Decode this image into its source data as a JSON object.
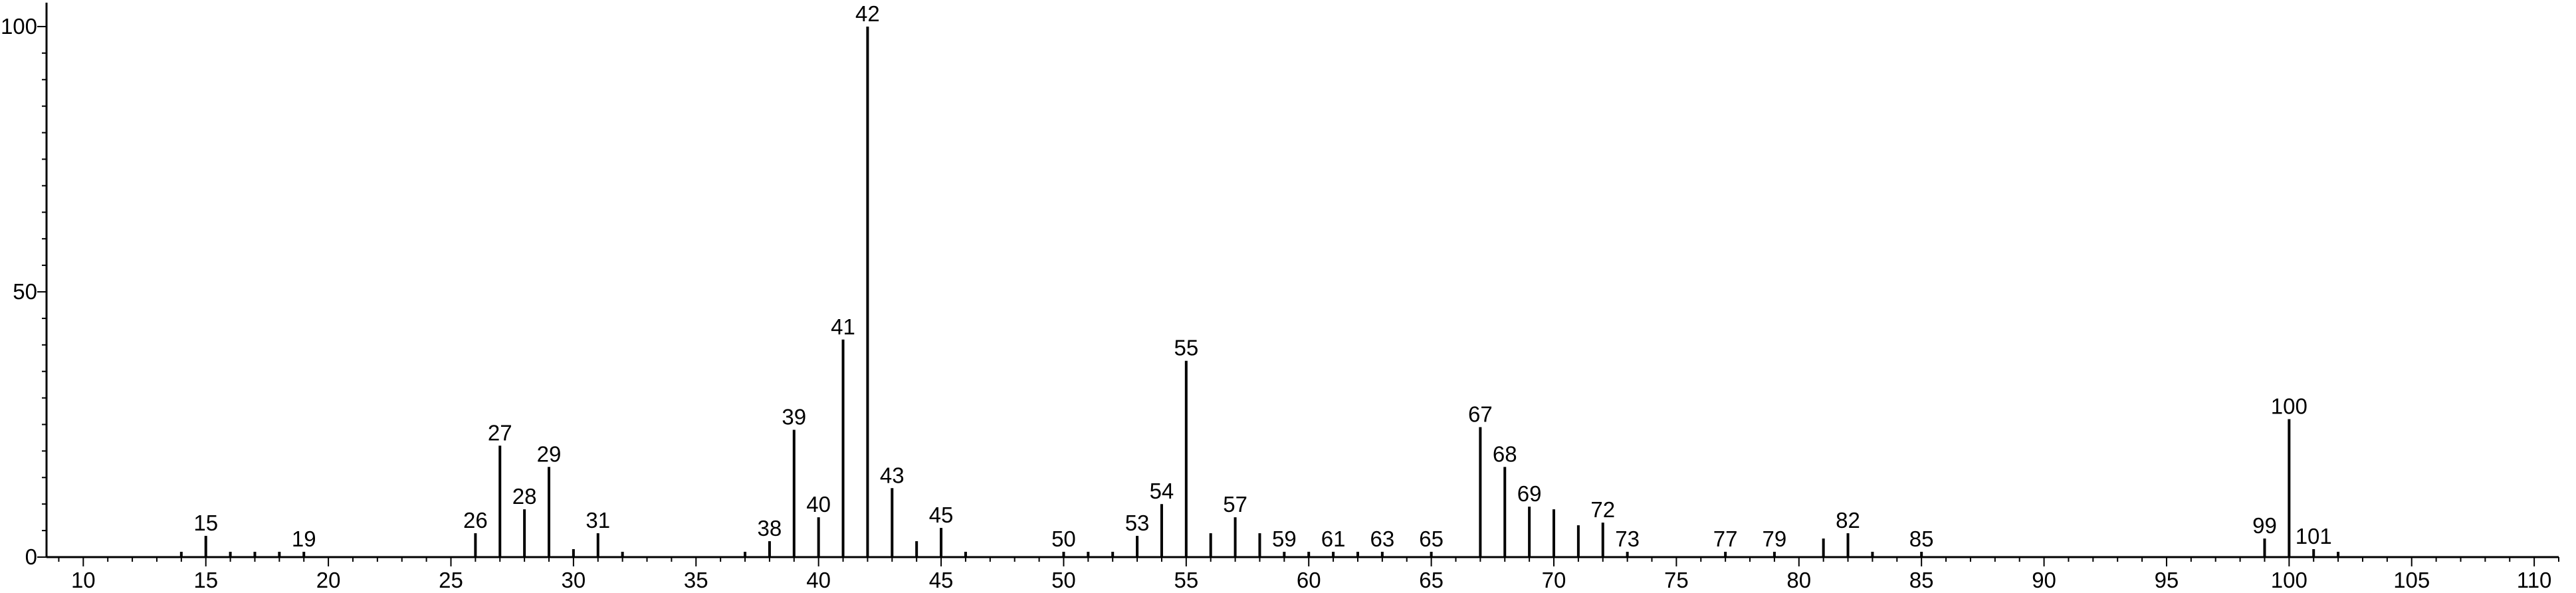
{
  "chart_data": {
    "type": "bar",
    "title": "",
    "xlabel": "",
    "ylabel": "",
    "xlim": [
      8.5,
      111
    ],
    "ylim": [
      0,
      102
    ],
    "x_ticks": [
      10,
      15,
      20,
      25,
      30,
      35,
      40,
      45,
      50,
      55,
      60,
      65,
      70,
      75,
      80,
      85,
      90,
      95,
      100,
      105,
      110
    ],
    "y_ticks": [
      0,
      50,
      100
    ],
    "grid": false,
    "legend": "none",
    "peaks": [
      {
        "x": 14,
        "y": 1
      },
      {
        "x": 15,
        "y": 4,
        "label": "15"
      },
      {
        "x": 16,
        "y": 1
      },
      {
        "x": 17,
        "y": 1
      },
      {
        "x": 18,
        "y": 1
      },
      {
        "x": 19,
        "y": 1,
        "label": "19"
      },
      {
        "x": 26,
        "y": 4.5,
        "label": "26"
      },
      {
        "x": 27,
        "y": 21,
        "label": "27"
      },
      {
        "x": 28,
        "y": 9,
        "label": "28"
      },
      {
        "x": 29,
        "y": 17,
        "label": "29"
      },
      {
        "x": 30,
        "y": 1.5
      },
      {
        "x": 31,
        "y": 4.5,
        "label": "31"
      },
      {
        "x": 32,
        "y": 1
      },
      {
        "x": 37,
        "y": 1
      },
      {
        "x": 38,
        "y": 3,
        "label": "38"
      },
      {
        "x": 39,
        "y": 24,
        "label": "39"
      },
      {
        "x": 40,
        "y": 7.5,
        "label": "40"
      },
      {
        "x": 41,
        "y": 41,
        "label": "41"
      },
      {
        "x": 42,
        "y": 100,
        "label": "42"
      },
      {
        "x": 43,
        "y": 13,
        "label": "43"
      },
      {
        "x": 44,
        "y": 3
      },
      {
        "x": 45,
        "y": 5.5,
        "label": "45"
      },
      {
        "x": 46,
        "y": 1
      },
      {
        "x": 50,
        "y": 1,
        "label": "50"
      },
      {
        "x": 51,
        "y": 1
      },
      {
        "x": 52,
        "y": 1
      },
      {
        "x": 53,
        "y": 4,
        "label": "53"
      },
      {
        "x": 54,
        "y": 10,
        "label": "54"
      },
      {
        "x": 55,
        "y": 37,
        "label": "55"
      },
      {
        "x": 56,
        "y": 4.5
      },
      {
        "x": 57,
        "y": 7.5,
        "label": "57"
      },
      {
        "x": 58,
        "y": 4.5
      },
      {
        "x": 59,
        "y": 1,
        "label": "59"
      },
      {
        "x": 60,
        "y": 1
      },
      {
        "x": 61,
        "y": 1,
        "label": "61"
      },
      {
        "x": 62,
        "y": 1
      },
      {
        "x": 63,
        "y": 1,
        "label": "63"
      },
      {
        "x": 65,
        "y": 1,
        "label": "65"
      },
      {
        "x": 67,
        "y": 24.5,
        "label": "67"
      },
      {
        "x": 68,
        "y": 17,
        "label": "68"
      },
      {
        "x": 69,
        "y": 9.5,
        "label": "69"
      },
      {
        "x": 70,
        "y": 9
      },
      {
        "x": 71,
        "y": 6
      },
      {
        "x": 72,
        "y": 6.5,
        "label": "72"
      },
      {
        "x": 73,
        "y": 1,
        "label": "73"
      },
      {
        "x": 77,
        "y": 1,
        "label": "77"
      },
      {
        "x": 79,
        "y": 1,
        "label": "79"
      },
      {
        "x": 81,
        "y": 3.5
      },
      {
        "x": 82,
        "y": 4.5,
        "label": "82"
      },
      {
        "x": 83,
        "y": 1
      },
      {
        "x": 85,
        "y": 1,
        "label": "85"
      },
      {
        "x": 99,
        "y": 3.5,
        "label": "99"
      },
      {
        "x": 100,
        "y": 26,
        "label": "100"
      },
      {
        "x": 101,
        "y": 1.5,
        "label": "101"
      },
      {
        "x": 102,
        "y": 1
      }
    ]
  }
}
